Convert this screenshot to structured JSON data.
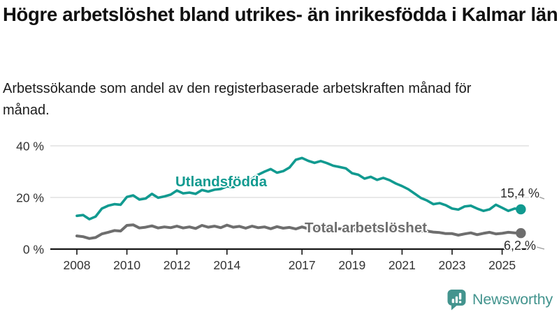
{
  "chart_data": {
    "type": "line",
    "title": "Högre arbetslöshet bland utrikes- än inrikesfödda i Kalmar län",
    "subtitle": "Arbetssökande som andel av den registerbaserade arbetskraften månad för månad.",
    "unit": "%",
    "grid": "horizontal",
    "legend_position": "inline-labels",
    "x_start": 2008.0,
    "x_step": 0.25,
    "x_end": 2025.75,
    "ylim": [
      0,
      42
    ],
    "y_ticks": [
      {
        "value": 0,
        "label": "0 %"
      },
      {
        "value": 20,
        "label": "20 %"
      },
      {
        "value": 40,
        "label": "40 %"
      }
    ],
    "x_tick_years": [
      2008,
      2010,
      2012,
      2014,
      2017,
      2019,
      2021,
      2023,
      2025
    ],
    "x_tick_labels": [
      "2008",
      "2010",
      "2012",
      "2014",
      "2017",
      "2019",
      "2021",
      "2023",
      "2025"
    ],
    "series": [
      {
        "id": "utlandsfodda",
        "name": "Utlandsfödda",
        "color": "#119a90",
        "line_width": 3.6,
        "end_label": "15,4 %",
        "end_value": 15.4,
        "values": [
          12.9,
          13.2,
          11.6,
          12.6,
          15.7,
          16.8,
          17.4,
          17.2,
          20.2,
          20.8,
          19.2,
          19.6,
          21.4,
          19.9,
          20.4,
          21.1,
          22.7,
          21.6,
          21.9,
          21.4,
          22.9,
          22.3,
          23.0,
          23.3,
          24.3,
          24.0,
          25.0,
          25.6,
          27.2,
          28.8,
          30.0,
          31.0,
          29.6,
          30.2,
          31.6,
          34.6,
          35.3,
          34.2,
          33.4,
          34.1,
          33.3,
          32.3,
          31.8,
          31.3,
          29.4,
          28.8,
          27.3,
          28.0,
          26.8,
          27.6,
          26.7,
          25.4,
          24.4,
          23.2,
          21.5,
          19.8,
          18.8,
          17.4,
          17.8,
          17.0,
          15.7,
          15.3,
          16.5,
          16.8,
          15.7,
          14.8,
          15.4,
          17.2,
          16.0,
          14.8,
          15.7,
          15.4
        ]
      },
      {
        "id": "total",
        "name": "Total arbetslöshet",
        "color": "#6e6e6e",
        "line_width": 4.0,
        "end_label": "6,2 %",
        "end_value": 6.2,
        "values": [
          5.1,
          4.8,
          4.1,
          4.5,
          5.9,
          6.5,
          7.2,
          7.0,
          9.2,
          9.4,
          8.2,
          8.5,
          9.0,
          8.2,
          8.6,
          8.3,
          8.9,
          8.2,
          8.6,
          8.0,
          9.2,
          8.5,
          8.9,
          8.3,
          9.3,
          8.5,
          8.8,
          8.1,
          8.9,
          8.3,
          8.6,
          7.9,
          8.7,
          8.1,
          8.4,
          7.8,
          8.6,
          7.9,
          8.2,
          7.7,
          8.2,
          7.6,
          7.9,
          7.4,
          7.8,
          7.3,
          7.6,
          7.5,
          8.0,
          8.6,
          8.3,
          8.0,
          8.2,
          7.7,
          7.4,
          7.0,
          7.0,
          6.6,
          6.4,
          6.0,
          6.0,
          5.4,
          5.9,
          6.3,
          5.6,
          6.1,
          6.5,
          5.9,
          6.1,
          6.5,
          6.3,
          6.2
        ]
      }
    ]
  },
  "footer": {
    "brand": "Newsworthy",
    "brand_color": "#43948e",
    "logo_icon": "bar-chart-speech-bubble-icon"
  }
}
